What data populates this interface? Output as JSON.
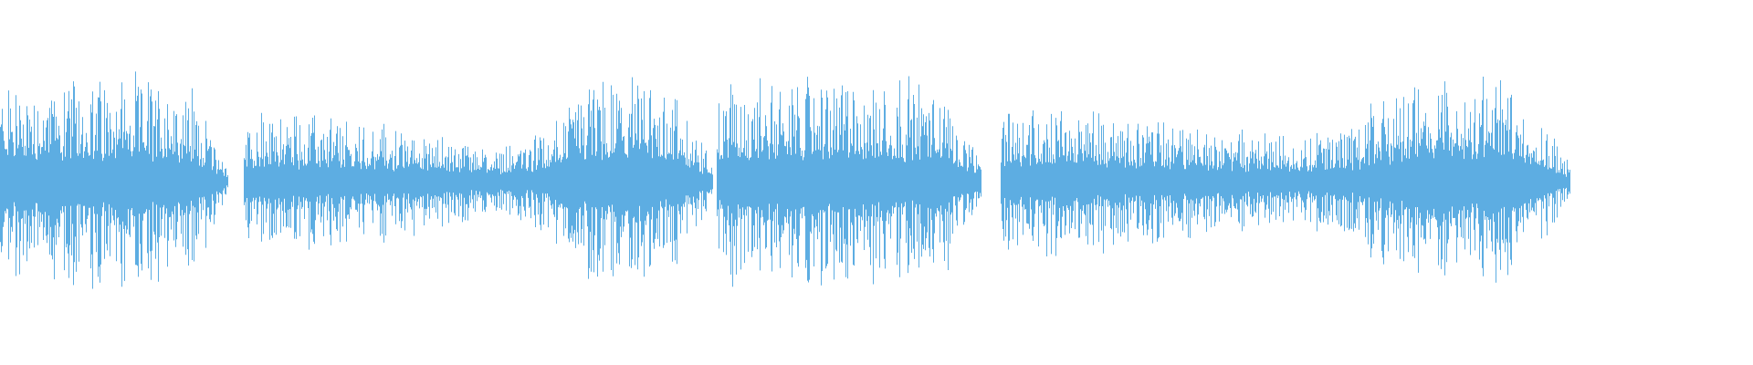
{
  "chart_data": {
    "type": "waveform",
    "title": "",
    "xlabel": "",
    "ylabel": "",
    "axes_visible": false,
    "grid": false,
    "legend": "none",
    "ylim": [
      -1,
      1
    ],
    "color": "#5dade2",
    "background": "#ffffff",
    "segments": [
      {
        "start": 0.0,
        "end": 0.13,
        "envelope": [
          0.95,
          0.98,
          0.97,
          0.98,
          0.95,
          0.9,
          0.15
        ]
      },
      {
        "start": 0.139,
        "end": 0.407,
        "envelope": [
          0.6,
          0.62,
          0.6,
          0.55,
          0.48,
          0.4,
          0.35,
          0.45,
          0.88,
          0.92,
          0.88,
          0.2
        ]
      },
      {
        "start": 0.409,
        "end": 0.56,
        "envelope": [
          0.9,
          0.98,
          0.98,
          0.98,
          0.97,
          0.95,
          0.9,
          0.15
        ]
      },
      {
        "start": 0.571,
        "end": 0.896,
        "envelope": [
          0.7,
          0.72,
          0.68,
          0.62,
          0.55,
          0.48,
          0.45,
          0.45,
          0.5,
          0.9,
          0.95,
          0.95,
          0.88,
          0.15
        ]
      }
    ]
  }
}
